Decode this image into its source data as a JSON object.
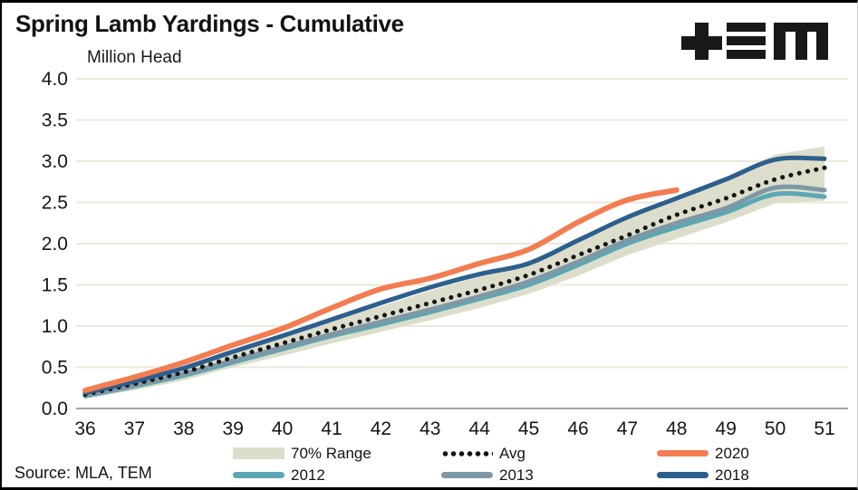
{
  "header": {
    "title": "Spring Lamb Yardings - Cumulative",
    "unit_label": "Million Head",
    "logo": "TEM"
  },
  "source": {
    "text": "Source: MLA, TEM"
  },
  "legend": {
    "items": [
      {
        "label": "70% Range",
        "type": "band",
        "color": "#dcdecb"
      },
      {
        "label": "Avg",
        "type": "dotted",
        "color": "#141414"
      },
      {
        "label": "2020",
        "type": "line",
        "color": "#f27d51"
      },
      {
        "label": "2012",
        "type": "line",
        "color": "#5ba8b4"
      },
      {
        "label": "2013",
        "type": "line",
        "color": "#7f98a6"
      },
      {
        "label": "2018",
        "type": "line",
        "color": "#2d5f8e"
      }
    ]
  },
  "chart_data": {
    "type": "line",
    "title": "Spring Lamb Yardings - Cumulative",
    "xlabel": "",
    "ylabel": "Million Head",
    "x": [
      36,
      37,
      38,
      39,
      40,
      41,
      42,
      43,
      44,
      45,
      46,
      47,
      48,
      49,
      50,
      51
    ],
    "ylim": [
      0.0,
      4.0
    ],
    "y_ticks": [
      0.0,
      0.5,
      1.0,
      1.5,
      2.0,
      2.5,
      3.0,
      3.5,
      4.0
    ],
    "grid": true,
    "legend_position": "bottom",
    "band": {
      "name": "70% Range",
      "color": "#dcdecb",
      "upper": [
        0.2,
        0.35,
        0.51,
        0.7,
        0.88,
        1.07,
        1.24,
        1.43,
        1.6,
        1.79,
        2.06,
        2.34,
        2.58,
        2.81,
        3.08,
        3.18
      ],
      "lower": [
        0.12,
        0.22,
        0.34,
        0.5,
        0.64,
        0.79,
        0.93,
        1.07,
        1.22,
        1.39,
        1.61,
        1.86,
        2.06,
        2.26,
        2.49,
        2.52
      ]
    },
    "series": [
      {
        "name": "2012",
        "style": "solid",
        "color": "#5ba8b4",
        "values": [
          0.15,
          0.27,
          0.4,
          0.56,
          0.72,
          0.88,
          1.02,
          1.17,
          1.33,
          1.5,
          1.74,
          2.0,
          2.2,
          2.38,
          2.6,
          2.57
        ]
      },
      {
        "name": "2013",
        "style": "solid",
        "color": "#7f98a6",
        "values": [
          0.16,
          0.28,
          0.42,
          0.58,
          0.74,
          0.9,
          1.05,
          1.2,
          1.36,
          1.54,
          1.78,
          2.04,
          2.25,
          2.43,
          2.68,
          2.65
        ]
      },
      {
        "name": "Avg",
        "style": "dotted",
        "color": "#141414",
        "values": [
          0.17,
          0.3,
          0.44,
          0.62,
          0.79,
          0.96,
          1.12,
          1.28,
          1.44,
          1.62,
          1.86,
          2.1,
          2.35,
          2.55,
          2.78,
          2.92
        ]
      },
      {
        "name": "2018",
        "style": "solid",
        "color": "#2d5f8e",
        "values": [
          0.19,
          0.33,
          0.49,
          0.69,
          0.88,
          1.08,
          1.28,
          1.47,
          1.63,
          1.76,
          2.04,
          2.32,
          2.55,
          2.78,
          3.02,
          3.03
        ]
      },
      {
        "name": "2020",
        "style": "solid",
        "color": "#f27d51",
        "values": [
          0.22,
          0.38,
          0.56,
          0.77,
          0.97,
          1.22,
          1.45,
          1.58,
          1.76,
          1.93,
          2.26,
          2.53,
          2.65,
          null,
          null,
          null
        ]
      }
    ],
    "colors": {
      "grid": "#e9e9da",
      "axis": "#a6a6a6",
      "text": "#161616"
    }
  }
}
